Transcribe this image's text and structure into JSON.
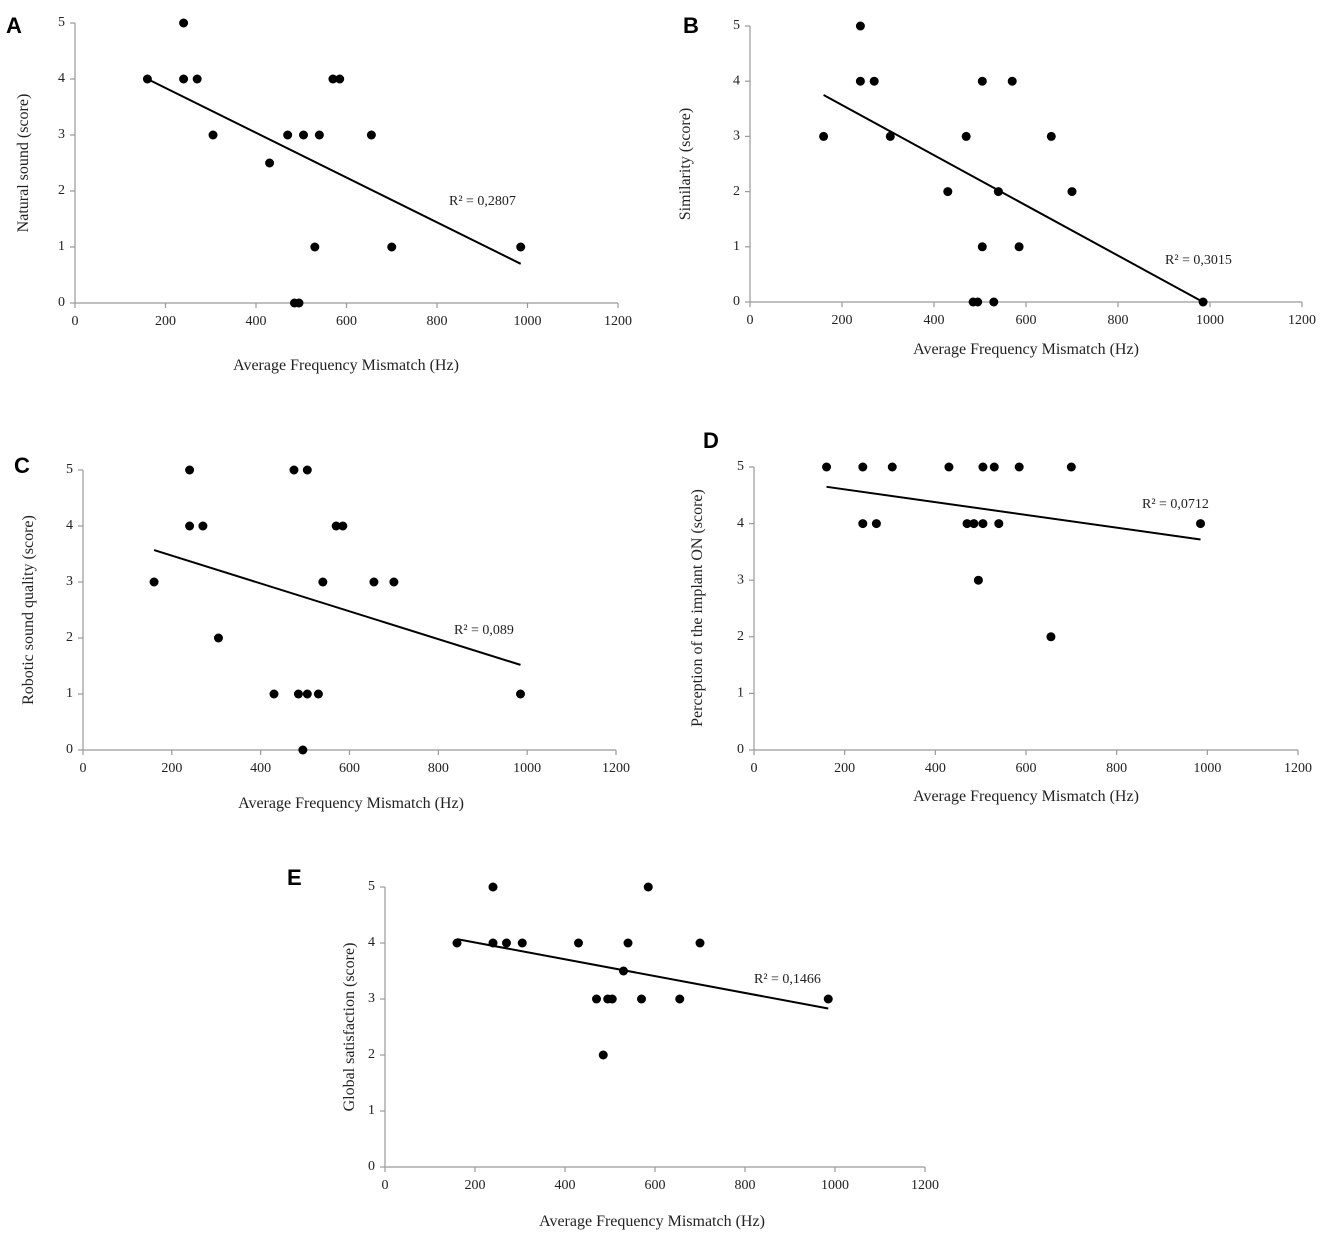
{
  "chart_data": [
    {
      "panel": "A",
      "type": "scatter",
      "title": "",
      "xlabel": "Average Frequency Mismatch (Hz)",
      "ylabel": "Natural sound (score)",
      "xlim": [
        0,
        1200
      ],
      "ylim": [
        0,
        5
      ],
      "xticks": [
        "0",
        "200",
        "400",
        "600",
        "800",
        "1000",
        "1200"
      ],
      "yticks": [
        "0",
        "1",
        "2",
        "3",
        "4",
        "5"
      ],
      "grid": false,
      "annotation": "R² = 0,2807",
      "trendline": {
        "x": [
          160,
          985
        ],
        "y": [
          4.0,
          0.7
        ]
      },
      "points": [
        [
          160,
          4
        ],
        [
          240,
          5
        ],
        [
          240,
          4
        ],
        [
          270,
          4
        ],
        [
          305,
          3
        ],
        [
          430,
          2.5
        ],
        [
          470,
          3
        ],
        [
          485,
          0
        ],
        [
          495,
          0
        ],
        [
          505,
          3
        ],
        [
          530,
          1
        ],
        [
          540,
          3
        ],
        [
          570,
          4
        ],
        [
          585,
          4
        ],
        [
          655,
          3
        ],
        [
          700,
          1
        ],
        [
          985,
          1
        ]
      ]
    },
    {
      "panel": "B",
      "type": "scatter",
      "title": "",
      "xlabel": "Average Frequency Mismatch (Hz)",
      "ylabel": "Similarity (score)",
      "xlim": [
        0,
        1200
      ],
      "ylim": [
        0,
        5
      ],
      "xticks": [
        "0",
        "200",
        "400",
        "600",
        "800",
        "1000",
        "1200"
      ],
      "yticks": [
        "0",
        "1",
        "2",
        "3",
        "4",
        "5"
      ],
      "grid": false,
      "annotation": "R² = 0,3015",
      "trendline": {
        "x": [
          160,
          985
        ],
        "y": [
          3.75,
          0.0
        ]
      },
      "points": [
        [
          160,
          3
        ],
        [
          240,
          5
        ],
        [
          240,
          4
        ],
        [
          270,
          4
        ],
        [
          305,
          3
        ],
        [
          430,
          2
        ],
        [
          470,
          3
        ],
        [
          485,
          0
        ],
        [
          495,
          0
        ],
        [
          505,
          1
        ],
        [
          505,
          4
        ],
        [
          530,
          0
        ],
        [
          540,
          2
        ],
        [
          570,
          4
        ],
        [
          585,
          1
        ],
        [
          655,
          3
        ],
        [
          700,
          2
        ],
        [
          985,
          0
        ]
      ]
    },
    {
      "panel": "C",
      "type": "scatter",
      "title": "",
      "xlabel": "Average Frequency Mismatch (Hz)",
      "ylabel": "Robotic sound quality (score)",
      "xlim": [
        0,
        1200
      ],
      "ylim": [
        0,
        5
      ],
      "xticks": [
        "0",
        "200",
        "400",
        "600",
        "800",
        "1000",
        "1200"
      ],
      "yticks": [
        "0",
        "1",
        "2",
        "3",
        "4",
        "5"
      ],
      "grid": false,
      "annotation": "R² = 0,089",
      "trendline": {
        "x": [
          160,
          985
        ],
        "y": [
          3.57,
          1.52
        ]
      },
      "points": [
        [
          160,
          3
        ],
        [
          240,
          5
        ],
        [
          240,
          4
        ],
        [
          270,
          4
        ],
        [
          305,
          2
        ],
        [
          430,
          1
        ],
        [
          475,
          5
        ],
        [
          485,
          1
        ],
        [
          495,
          0
        ],
        [
          505,
          1
        ],
        [
          505,
          5
        ],
        [
          530,
          1
        ],
        [
          540,
          3
        ],
        [
          570,
          4
        ],
        [
          585,
          4
        ],
        [
          655,
          3
        ],
        [
          700,
          3
        ],
        [
          985,
          1
        ]
      ]
    },
    {
      "panel": "D",
      "type": "scatter",
      "title": "",
      "xlabel": "Average Frequency Mismatch (Hz)",
      "ylabel": "Perception of the implant ON (score)",
      "xlim": [
        0,
        1200
      ],
      "ylim": [
        0,
        5
      ],
      "xticks": [
        "0",
        "200",
        "400",
        "600",
        "800",
        "1000",
        "1200"
      ],
      "yticks": [
        "0",
        "1",
        "2",
        "3",
        "4",
        "5"
      ],
      "grid": false,
      "annotation": "R² = 0,0712",
      "trendline": {
        "x": [
          160,
          985
        ],
        "y": [
          4.65,
          3.72
        ]
      },
      "points": [
        [
          160,
          5
        ],
        [
          240,
          5
        ],
        [
          240,
          4
        ],
        [
          270,
          4
        ],
        [
          305,
          5
        ],
        [
          430,
          5
        ],
        [
          470,
          4
        ],
        [
          485,
          4
        ],
        [
          495,
          3
        ],
        [
          505,
          4
        ],
        [
          505,
          5
        ],
        [
          530,
          5
        ],
        [
          540,
          4
        ],
        [
          585,
          5
        ],
        [
          655,
          2
        ],
        [
          700,
          5
        ],
        [
          985,
          4
        ]
      ]
    },
    {
      "panel": "E",
      "type": "scatter",
      "title": "",
      "xlabel": "Average Frequency Mismatch (Hz)",
      "ylabel": "Global satisfaction (score)",
      "xlim": [
        0,
        1200
      ],
      "ylim": [
        0,
        5
      ],
      "xticks": [
        "0",
        "200",
        "400",
        "600",
        "800",
        "1000",
        "1200"
      ],
      "yticks": [
        "0",
        "1",
        "2",
        "3",
        "4",
        "5"
      ],
      "grid": false,
      "annotation": "R² = 0,1466",
      "trendline": {
        "x": [
          160,
          985
        ],
        "y": [
          4.07,
          2.83
        ]
      },
      "points": [
        [
          160,
          4
        ],
        [
          240,
          5
        ],
        [
          240,
          4
        ],
        [
          270,
          4
        ],
        [
          305,
          4
        ],
        [
          430,
          4
        ],
        [
          470,
          3
        ],
        [
          485,
          2
        ],
        [
          495,
          3
        ],
        [
          505,
          3
        ],
        [
          530,
          3.5
        ],
        [
          540,
          4
        ],
        [
          570,
          3
        ],
        [
          585,
          5
        ],
        [
          655,
          3
        ],
        [
          700,
          4
        ],
        [
          985,
          3
        ]
      ]
    }
  ]
}
